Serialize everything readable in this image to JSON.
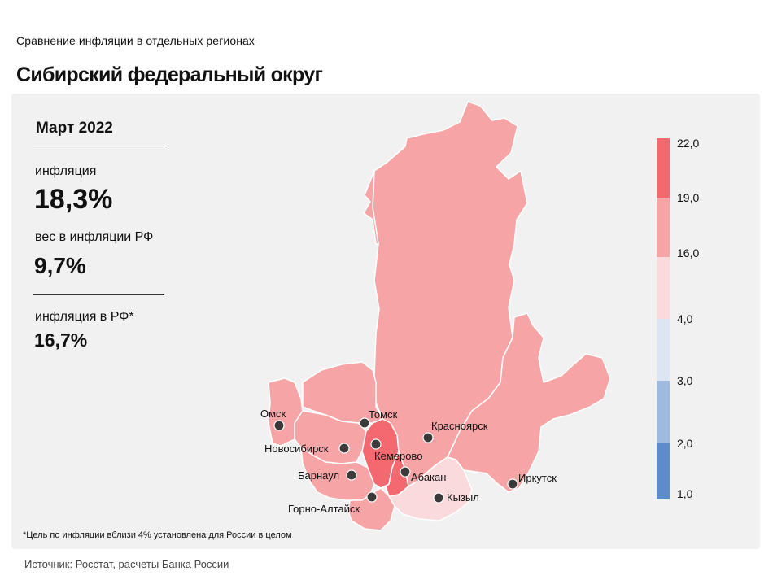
{
  "header": {
    "subtitle": "Сравнение инфляции в отдельных регионах",
    "title": "Сибирский федеральный округ"
  },
  "info": {
    "date": "Март 2022",
    "inflation_label": "инфляция",
    "inflation_value": "18,3%",
    "weight_label": "вес в инфляции РФ",
    "weight_value": "9,7%",
    "rf_label": "инфляция в РФ*",
    "rf_value": "16,7%"
  },
  "legend": {
    "ticks": [
      "22,0",
      "19,0",
      "16,0",
      "4,0",
      "3,0",
      "2,0",
      "1,0"
    ],
    "colors": [
      "#f4696f",
      "#f7a4a7",
      "#fbdadd",
      "#dde4f3",
      "#9ebbdf",
      "#5c8ccb"
    ]
  },
  "cities": {
    "omsk": "Омск",
    "tomsk": "Томск",
    "novosibirsk": "Новосибирск",
    "kemerovo": "Кемерово",
    "krasnoyarsk": "Красноярск",
    "barnaul": "Барнаул",
    "abakan": "Абакан",
    "irkutsk": "Иркутск",
    "gorno_altaisk": "Горно-Алтайск",
    "kyzyl": "Кызыл"
  },
  "colors": {
    "high": "#f4696f",
    "mid": "#f7a4a7",
    "low": "#fbdadd",
    "panel": "#f1f1f1"
  },
  "footnote": "*Цель по инфляции вблизи 4% установлена для России в целом",
  "source": "Источник: Росстат, расчеты Банка России"
}
